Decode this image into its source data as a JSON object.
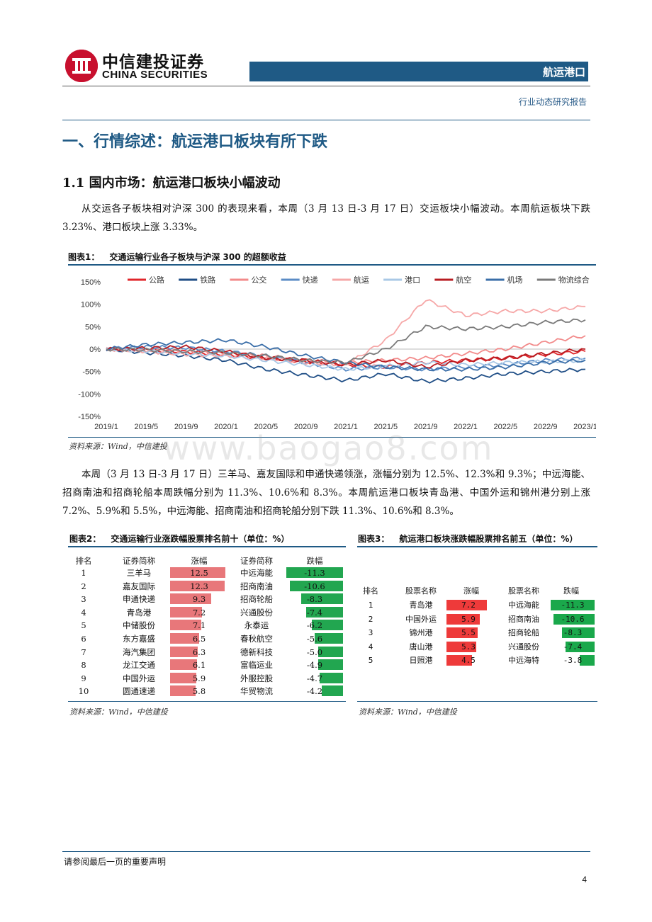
{
  "header": {
    "logo_cn": "中信建投证券",
    "logo_en": "CHINA SECURITIES",
    "section_tag": "航运港口",
    "report_type": "行业动态研究报告",
    "brand_color": "#1f5a85",
    "logo_color": "#c8102e"
  },
  "section": {
    "title": "一、行情综述：航运港口板块有所下跌",
    "subtitle": "1.1 国内市场：航运港口板块小幅波动",
    "para1": "从交运各子板块相对沪深 300 的表现来看，本周（3 月 13 日-3 月 17 日）交运板块小幅波动。本周航运板块下跌 3.23%、港口板块上涨 3.33%。",
    "para2": "本周（3 月 13 日-3 月 17 日）三羊马、嘉友国际和申通快递领涨，涨幅分别为 12.5%、12.3%和 9.3%；中远海能、招商南油和招商轮船本周跌幅分别为 11.3%、10.6%和 8.3%。本周航运港口板块青岛港、中国外运和锦州港分别上涨 7.2%、5.9%和 5.5%，中远海能、招商南油和招商轮船分别下跌 11.3%、10.6%和 8.3%。"
  },
  "figure1": {
    "label": "图表1：",
    "title": "交通运输行业各子板块与沪深 300 的超额收益",
    "source": "资料来源：Wind，中信建投"
  },
  "chart_data": {
    "type": "line",
    "title": "交通运输行业各子板块与沪深 300 的超额收益",
    "x": [
      "2019/1",
      "2019/5",
      "2019/9",
      "2020/1",
      "2020/5",
      "2020/9",
      "2021/1",
      "2021/5",
      "2021/9",
      "2022/1",
      "2022/5",
      "2022/9",
      "2023/1"
    ],
    "ylim": [
      -150,
      150
    ],
    "yticks": [
      "150%",
      "100%",
      "50%",
      "0%",
      "-50%",
      "-100%",
      "-150%"
    ],
    "legend_position": "top",
    "series": [
      {
        "name": "公路",
        "color": "#e0262b",
        "values": [
          0,
          -3,
          -6,
          -12,
          -20,
          -28,
          -35,
          -40,
          -30,
          -25,
          -20,
          -12,
          -5
        ]
      },
      {
        "name": "铁路",
        "color": "#1f4e86",
        "values": [
          0,
          -8,
          -15,
          -25,
          -45,
          -58,
          -70,
          -55,
          -72,
          -65,
          -55,
          -50,
          -45
        ]
      },
      {
        "name": "公交",
        "color": "#f28a8a",
        "values": [
          0,
          -2,
          -6,
          -10,
          -15,
          -25,
          -30,
          -25,
          -20,
          -10,
          0,
          15,
          30
        ]
      },
      {
        "name": "快递",
        "color": "#5b8cc6",
        "values": [
          0,
          5,
          3,
          -5,
          -15,
          -30,
          -45,
          -40,
          -45,
          -40,
          -35,
          -25,
          -20
        ]
      },
      {
        "name": "航运",
        "color": "#f6a7a7",
        "values": [
          0,
          -5,
          -12,
          -15,
          -20,
          -30,
          -35,
          20,
          110,
          75,
          85,
          85,
          95
        ]
      },
      {
        "name": "港口",
        "color": "#a9c8e6",
        "values": [
          0,
          -4,
          -10,
          -15,
          -25,
          -35,
          -45,
          -38,
          -30,
          -35,
          -30,
          -28,
          -25
        ]
      },
      {
        "name": "航空",
        "color": "#b81c22",
        "values": [
          0,
          2,
          5,
          -5,
          -20,
          -25,
          -35,
          -25,
          -40,
          -25,
          -20,
          -10,
          0
        ]
      },
      {
        "name": "机场",
        "color": "#3a6ea8",
        "values": [
          0,
          10,
          15,
          20,
          5,
          -15,
          -30,
          -40,
          -45,
          -45,
          -40,
          -30,
          -25
        ]
      },
      {
        "name": "物流综合",
        "color": "#7a7a7a",
        "values": [
          0,
          -2,
          -5,
          -8,
          -15,
          -25,
          -30,
          0,
          50,
          45,
          50,
          60,
          65
        ]
      }
    ]
  },
  "figure2": {
    "label": "图表2：",
    "title": "交通运输行业涨跌幅股票排名前十（单位：%）",
    "headers": [
      "排名",
      "证券简称",
      "涨幅",
      "证券简称",
      "跌幅"
    ],
    "rows": [
      {
        "rank": "1",
        "up_name": "三羊马",
        "up_val": "12.5",
        "up": 12.5,
        "down_name": "中远海能",
        "down_val": "-11.3",
        "down": 11.3
      },
      {
        "rank": "2",
        "up_name": "嘉友国际",
        "up_val": "12.3",
        "up": 12.3,
        "down_name": "招商南油",
        "down_val": "-10.6",
        "down": 10.6
      },
      {
        "rank": "3",
        "up_name": "申通快递",
        "up_val": "9.3",
        "up": 9.3,
        "down_name": "招商轮船",
        "down_val": "-8.3",
        "down": 8.3
      },
      {
        "rank": "4",
        "up_name": "青岛港",
        "up_val": "7.2",
        "up": 7.2,
        "down_name": "兴通股份",
        "down_val": "-7.4",
        "down": 7.4
      },
      {
        "rank": "5",
        "up_name": "中储股份",
        "up_val": "7.1",
        "up": 7.1,
        "down_name": "永泰运",
        "down_val": "-6.2",
        "down": 6.2
      },
      {
        "rank": "6",
        "up_name": "东方嘉盛",
        "up_val": "6.5",
        "up": 6.5,
        "down_name": "春秋航空",
        "down_val": "-5.6",
        "down": 5.6
      },
      {
        "rank": "7",
        "up_name": "海汽集团",
        "up_val": "6.3",
        "up": 6.3,
        "down_name": "德新科技",
        "down_val": "-5.0",
        "down": 5.0
      },
      {
        "rank": "8",
        "up_name": "龙江交通",
        "up_val": "6.1",
        "up": 6.1,
        "down_name": "富临运业",
        "down_val": "-4.9",
        "down": 4.9
      },
      {
        "rank": "9",
        "up_name": "中国外运",
        "up_val": "5.9",
        "up": 5.9,
        "down_name": "外服控股",
        "down_val": "-4.7",
        "down": 4.7
      },
      {
        "rank": "10",
        "up_name": "圆通速递",
        "up_val": "5.8",
        "up": 5.8,
        "down_name": "华贸物流",
        "down_val": "-4.2",
        "down": 4.2
      }
    ],
    "source": "资料来源：Wind，中信建投"
  },
  "figure3": {
    "label": "图表3：",
    "title": "航运港口板块涨跌幅股票排名前五（单位：%）",
    "headers": [
      "排名",
      "股票名称",
      "涨幅",
      "股票名称",
      "跌幅"
    ],
    "rows": [
      {
        "rank": "1",
        "up_name": "青岛港",
        "up_val": "7.2",
        "up": 7.2,
        "down_name": "中远海能",
        "down_val": "-11.3",
        "down": 11.3
      },
      {
        "rank": "2",
        "up_name": "中国外运",
        "up_val": "5.9",
        "up": 5.9,
        "down_name": "招商南油",
        "down_val": "-10.6",
        "down": 10.6
      },
      {
        "rank": "3",
        "up_name": "锦州港",
        "up_val": "5.5",
        "up": 5.5,
        "down_name": "招商轮船",
        "down_val": "-8.3",
        "down": 8.3
      },
      {
        "rank": "4",
        "up_name": "唐山港",
        "up_val": "5.3",
        "up": 5.3,
        "down_name": "兴通股份",
        "down_val": "-7.4",
        "down": 7.4
      },
      {
        "rank": "5",
        "up_name": "日照港",
        "up_val": "4.5",
        "up": 4.5,
        "down_name": "中远海特",
        "down_val": "-3.8",
        "down": 3.8
      }
    ],
    "source": "资料来源：Wind，中信建投"
  },
  "watermark": "www.baogao8.com",
  "footer": {
    "note": "请参阅最后一页的重要声明",
    "page": "4"
  }
}
